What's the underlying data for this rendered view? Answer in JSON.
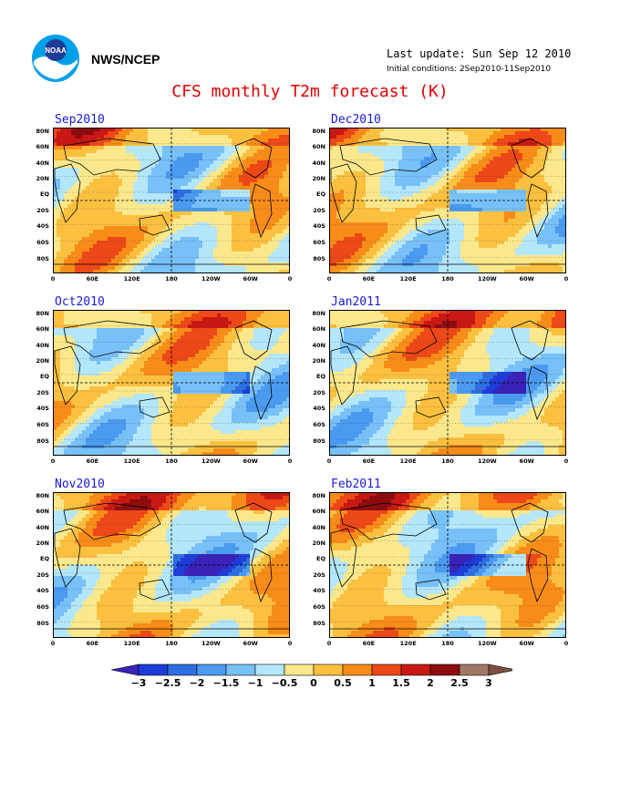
{
  "header": {
    "org": "NWS/NCEP",
    "last_update": "Last update: Sun Sep 12 2010",
    "initial_conditions": "Initial conditions: 2Sep2010-11Sep2010",
    "title": "CFS monthly T2m forecast (K)"
  },
  "panels": [
    {
      "label": "Sep2010"
    },
    {
      "label": "Dec2010"
    },
    {
      "label": "Oct2010"
    },
    {
      "label": "Jan2011"
    },
    {
      "label": "Nov2010"
    },
    {
      "label": "Feb2011"
    }
  ],
  "lat_labels": [
    "80N",
    "60N",
    "40N",
    "20N",
    "EQ",
    "20S",
    "40S",
    "60S",
    "80S"
  ],
  "lon_labels": [
    "0",
    "60E",
    "120E",
    "180",
    "120W",
    "60W",
    "0"
  ],
  "colorbar": {
    "labels": [
      "-3",
      "-2.5",
      "-2",
      "-1.5",
      "-1",
      "-0.5",
      "0",
      "0.5",
      "1",
      "1.5",
      "2",
      "2.5",
      "3"
    ],
    "colors": [
      "#3a22b8",
      "#1e3cd8",
      "#2e6ee0",
      "#4a9af0",
      "#78c0f8",
      "#b4e6fc",
      "#fce88c",
      "#fcc040",
      "#f88c18",
      "#ec4818",
      "#c81814",
      "#8c0c10",
      "#a07868",
      "#7c5040"
    ]
  }
}
